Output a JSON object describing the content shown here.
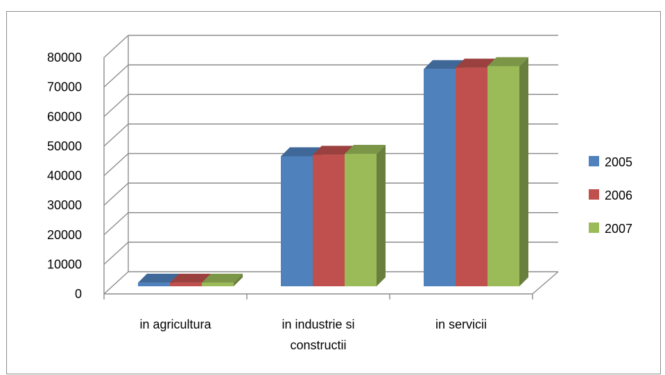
{
  "chart_data": {
    "type": "bar",
    "style": "3d-clustered-column",
    "categories": [
      "in agricultura",
      "in industrie si constructii",
      "in servicii"
    ],
    "category_lines": [
      [
        "in agricultura"
      ],
      [
        "in industrie si",
        "constructii"
      ],
      [
        "in servicii"
      ]
    ],
    "series": [
      {
        "name": "2005",
        "values": [
          1200,
          44000,
          73500
        ],
        "color": "#4F81BD"
      },
      {
        "name": "2006",
        "values": [
          1200,
          44500,
          74000
        ],
        "color": "#C0504D"
      },
      {
        "name": "2007",
        "values": [
          1200,
          44800,
          74500
        ],
        "color": "#9BBB59"
      }
    ],
    "ylim": [
      0,
      80000
    ],
    "yticks": [
      "0",
      "10000",
      "20000",
      "30000",
      "40000",
      "50000",
      "60000",
      "70000",
      "80000"
    ],
    "legend": "right",
    "grid": true
  }
}
